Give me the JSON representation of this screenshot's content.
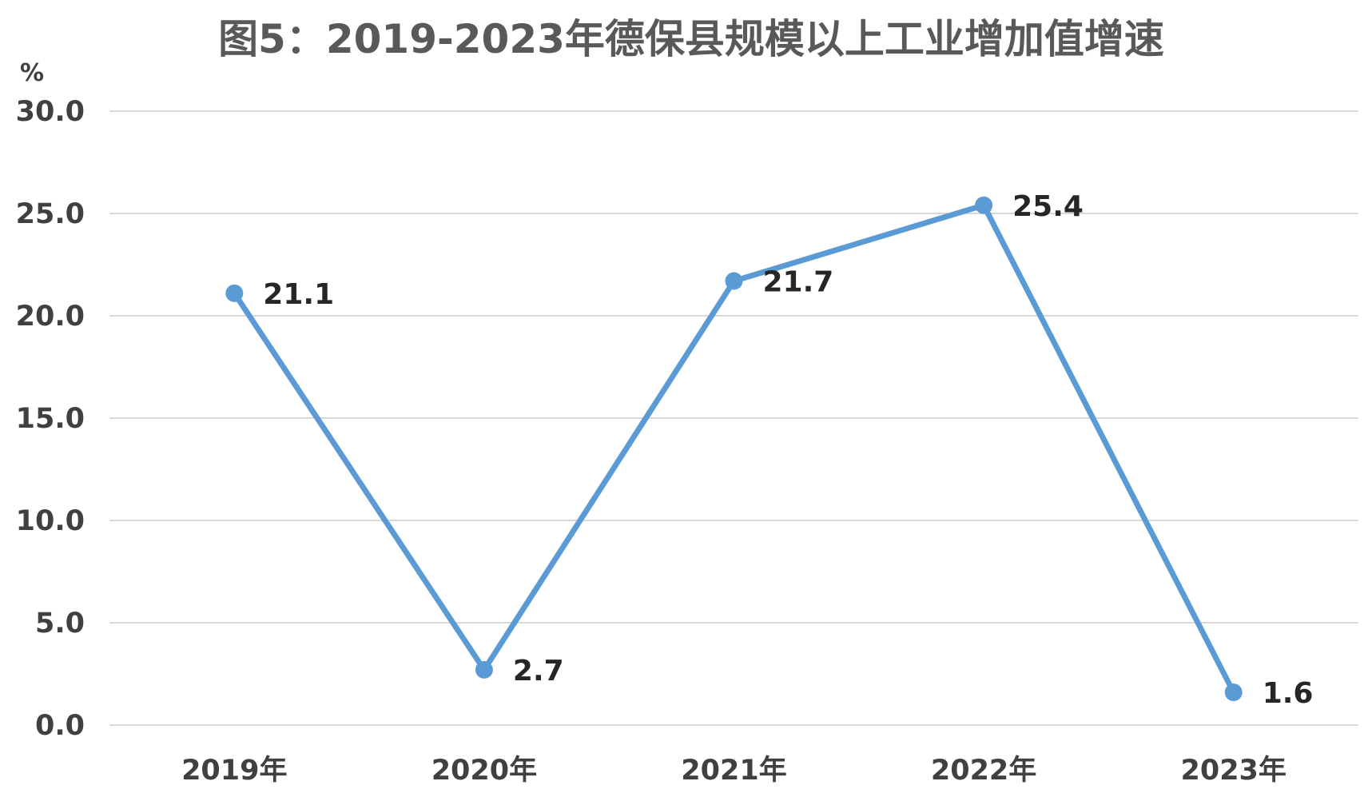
{
  "chart_data": {
    "type": "line",
    "title": "图5：2019-2023年德保县规模以上工业增加值增速",
    "ylabel": "%",
    "xlabel": "",
    "categories": [
      "2019年",
      "2020年",
      "2021年",
      "2022年",
      "2023年"
    ],
    "series": [
      {
        "values": [
          21.1,
          2.7,
          21.7,
          25.4,
          1.6
        ],
        "labels": [
          "21.1",
          "2.7",
          "21.7",
          "25.4",
          "1.6"
        ]
      }
    ],
    "ylim": [
      0,
      30
    ],
    "yticks": [
      0,
      5,
      10,
      15,
      20,
      25,
      30
    ],
    "ytick_labels": [
      "0.0",
      "5.0",
      "10.0",
      "15.0",
      "20.0",
      "25.0",
      "30.0"
    ],
    "grid": true,
    "legend": "none",
    "colors": {
      "line": "#5b9bd5",
      "grid": "#d9d9d9"
    }
  }
}
